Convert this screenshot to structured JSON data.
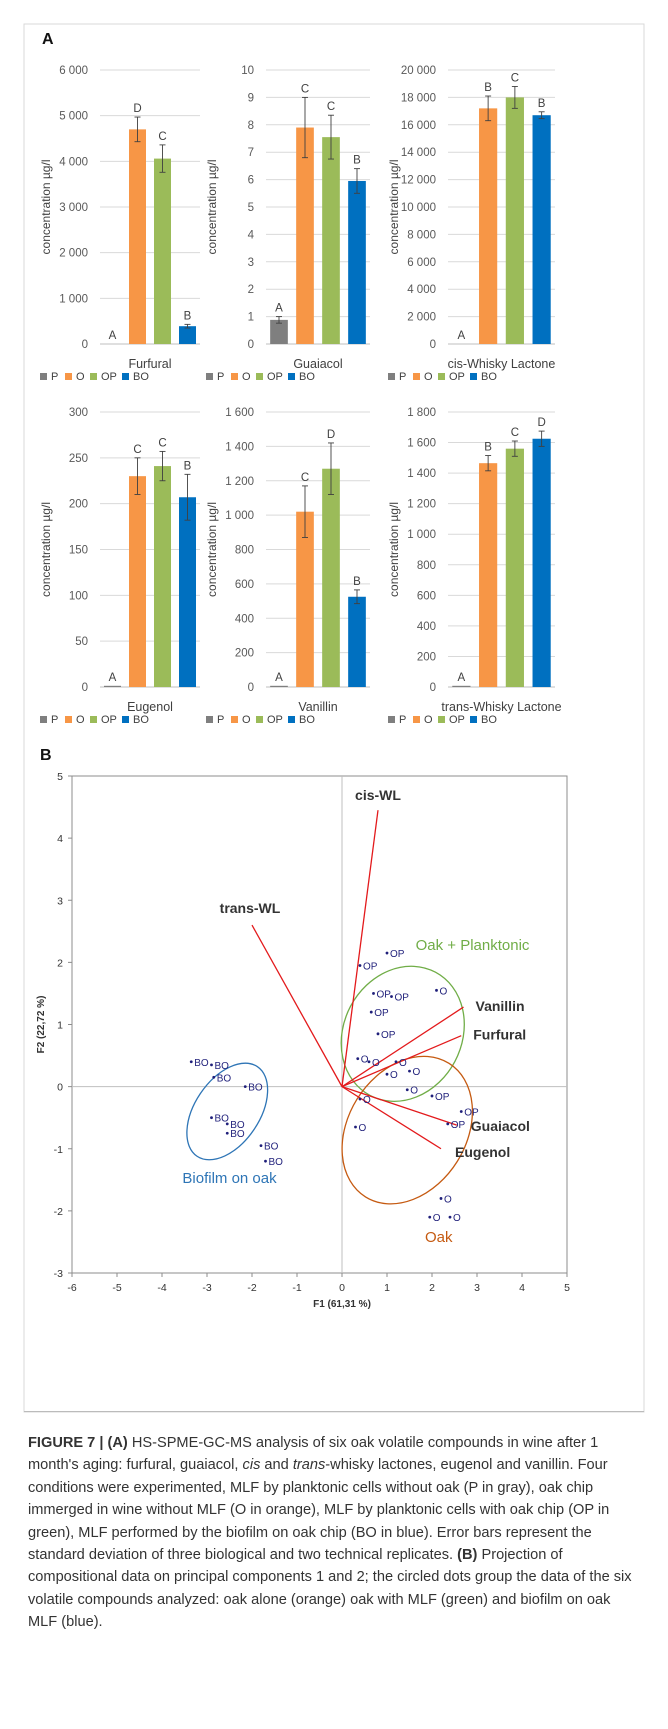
{
  "panel_labels": {
    "a": "A",
    "b": "B"
  },
  "colors": {
    "P": "#7f7f7f",
    "O": "#f79646",
    "OP": "#9bbb59",
    "BO": "#0070c0",
    "oak_ellipse": "#c55a11",
    "op_ellipse": "#70ad47",
    "bo_ellipse": "#2e75b6",
    "vector": "#e31a1c",
    "points": "#1f1f7a"
  },
  "legend": [
    "P",
    "O",
    "OP",
    "BO"
  ],
  "chart_data": [
    {
      "type": "bar",
      "xlabel": "Furfural",
      "ylabel": "concentration µg/l",
      "ylim": [
        0,
        6000
      ],
      "ytick_labels": [
        "0",
        "1 000",
        "2 000",
        "3 000",
        "4 000",
        "5 000",
        "6 000"
      ],
      "categories": [
        "P",
        "O",
        "OP",
        "BO"
      ],
      "values": [
        0,
        4700,
        4060,
        390
      ],
      "errors": [
        0,
        270,
        300,
        40
      ],
      "letters": [
        "A",
        "D",
        "C",
        "B"
      ]
    },
    {
      "type": "bar",
      "xlabel": "Guaiacol",
      "ylabel": "concentration µg/l",
      "ylim": [
        0,
        10
      ],
      "ytick_labels": [
        "0",
        "1",
        "2",
        "3",
        "4",
        "5",
        "6",
        "7",
        "8",
        "9",
        "10"
      ],
      "categories": [
        "P",
        "O",
        "OP",
        "BO"
      ],
      "values": [
        0.88,
        7.9,
        7.55,
        5.95
      ],
      "errors": [
        0.12,
        1.1,
        0.8,
        0.45
      ],
      "letters": [
        "A",
        "C",
        "C",
        "B"
      ]
    },
    {
      "type": "bar",
      "xlabel": "cis-Whisky Lactone",
      "ylabel": "concentration µg/l",
      "ylim": [
        0,
        20000
      ],
      "ytick_labels": [
        "0",
        "2 000",
        "4 000",
        "6 000",
        "8 000",
        "10 000",
        "12 000",
        "14 000",
        "16 000",
        "18 000",
        "20 000"
      ],
      "categories": [
        "P",
        "O",
        "OP",
        "BO"
      ],
      "values": [
        0,
        17200,
        18000,
        16700
      ],
      "errors": [
        0,
        900,
        800,
        250
      ],
      "letters": [
        "A",
        "B",
        "C",
        "B"
      ]
    },
    {
      "type": "bar",
      "xlabel": "Eugenol",
      "ylabel": "concentration µg/l",
      "ylim": [
        0,
        300
      ],
      "ytick_labels": [
        "0",
        "50",
        "100",
        "150",
        "200",
        "250",
        "300"
      ],
      "categories": [
        "P",
        "O",
        "OP",
        "BO"
      ],
      "values": [
        1,
        230,
        241,
        207
      ],
      "errors": [
        0,
        20,
        16,
        25
      ],
      "letters": [
        "A",
        "C",
        "C",
        "B"
      ]
    },
    {
      "type": "bar",
      "xlabel": "Vanillin",
      "ylabel": "concentration µg/l",
      "ylim": [
        0,
        1600
      ],
      "ytick_labels": [
        "0",
        "200",
        "400",
        "600",
        "800",
        "1 000",
        "1 200",
        "1 400",
        "1 600"
      ],
      "categories": [
        "P",
        "O",
        "OP",
        "BO"
      ],
      "values": [
        3,
        1020,
        1270,
        525
      ],
      "errors": [
        0,
        150,
        150,
        40
      ],
      "letters": [
        "A",
        "C",
        "D",
        "B"
      ]
    },
    {
      "type": "bar",
      "xlabel": "trans-Whisky Lactone",
      "ylabel": "concentration µg/l",
      "ylim": [
        0,
        1800
      ],
      "ytick_labels": [
        "0",
        "200",
        "400",
        "600",
        "800",
        "1 000",
        "1 200",
        "1 400",
        "1 600",
        "1 800"
      ],
      "categories": [
        "P",
        "O",
        "OP",
        "BO"
      ],
      "values": [
        3,
        1465,
        1560,
        1625
      ],
      "errors": [
        0,
        50,
        50,
        50
      ],
      "letters": [
        "A",
        "B",
        "C",
        "D"
      ]
    },
    {
      "type": "scatter",
      "xlabel": "F1 (61,31 %)",
      "ylabel": "F2 (22,72 %)",
      "xlim": [
        -6,
        5
      ],
      "ylim": [
        -3,
        5
      ],
      "xticks": [
        -6,
        -5,
        -4,
        -3,
        -2,
        -1,
        0,
        1,
        2,
        3,
        4,
        5
      ],
      "yticks": [
        -3,
        -2,
        -1,
        0,
        1,
        2,
        3,
        4,
        5
      ],
      "vectors": [
        {
          "label": "cis-WL",
          "x": 0.8,
          "y": 4.45
        },
        {
          "label": "trans-WL",
          "x": -2.0,
          "y": 2.6
        },
        {
          "label": "Vanillin",
          "x": 2.7,
          "y": 1.28
        },
        {
          "label": "Furfural",
          "x": 2.65,
          "y": 0.82
        },
        {
          "label": "Guaiacol",
          "x": 2.55,
          "y": -0.62
        },
        {
          "label": "Eugenol",
          "x": 2.2,
          "y": -1.0
        }
      ],
      "points": [
        {
          "label": "BO",
          "x": -3.35,
          "y": 0.4
        },
        {
          "label": "BO",
          "x": -2.9,
          "y": 0.35
        },
        {
          "label": "BO",
          "x": -2.85,
          "y": 0.15
        },
        {
          "label": "BO",
          "x": -2.15,
          "y": 0.0
        },
        {
          "label": "BO",
          "x": -2.9,
          "y": -0.5
        },
        {
          "label": "BO",
          "x": -2.55,
          "y": -0.6
        },
        {
          "label": "BO",
          "x": -2.55,
          "y": -0.75
        },
        {
          "label": "BO",
          "x": -1.8,
          "y": -0.95
        },
        {
          "label": "BO",
          "x": -1.7,
          "y": -1.2
        },
        {
          "label": "OP",
          "x": 0.4,
          "y": 1.95
        },
        {
          "label": "OP",
          "x": 1.0,
          "y": 2.15
        },
        {
          "label": "OP",
          "x": 0.7,
          "y": 1.5
        },
        {
          "label": "OP",
          "x": 1.1,
          "y": 1.45
        },
        {
          "label": "OP",
          "x": 0.65,
          "y": 1.2
        },
        {
          "label": "OP",
          "x": 0.8,
          "y": 0.85
        },
        {
          "label": "OP",
          "x": 2.0,
          "y": -0.15
        },
        {
          "label": "OP",
          "x": 2.65,
          "y": -0.4
        },
        {
          "label": "OP",
          "x": 2.35,
          "y": -0.6
        },
        {
          "label": "O",
          "x": 2.1,
          "y": 1.55
        },
        {
          "label": "O",
          "x": 0.35,
          "y": 0.45
        },
        {
          "label": "O",
          "x": 0.6,
          "y": 0.4
        },
        {
          "label": "O",
          "x": 1.2,
          "y": 0.4
        },
        {
          "label": "O",
          "x": 1.0,
          "y": 0.2
        },
        {
          "label": "O",
          "x": 1.5,
          "y": 0.25
        },
        {
          "label": "O",
          "x": 1.45,
          "y": -0.05
        },
        {
          "label": "O",
          "x": 0.4,
          "y": -0.2
        },
        {
          "label": "O",
          "x": 0.3,
          "y": -0.65
        },
        {
          "label": "O",
          "x": 2.2,
          "y": -1.8
        },
        {
          "label": "O",
          "x": 1.95,
          "y": -2.1
        },
        {
          "label": "O",
          "x": 2.4,
          "y": -2.1
        }
      ],
      "ellipses": [
        {
          "label": "Oak + Planktonic",
          "color_key": "op_ellipse"
        },
        {
          "label": "Oak",
          "color_key": "oak_ellipse"
        },
        {
          "label": "Biofilm on oak",
          "color_key": "bo_ellipse"
        }
      ]
    }
  ],
  "caption": {
    "figure_label": "FIGURE 7 |",
    "part_a_label": "(A)",
    "part_a_text_1": " HS-SPME-GC-MS analysis of six oak volatile compounds in wine after 1 month's aging: furfural, guaiacol, ",
    "part_a_italic": "cis",
    "part_a_text_2": " and ",
    "part_a_italic_2": "trans",
    "part_a_text_3": "-whisky lactones, eugenol and vanillin. Four conditions were experimented, MLF by planktonic cells without oak (P in gray), oak chip immerged in wine without MLF (O in orange), MLF by planktonic cells with oak chip (OP in green), MLF performed by the biofilm on oak chip (BO in blue). Error bars represent the standard deviation of three biological and two technical replicates. ",
    "part_b_label": "(B)",
    "part_b_text": " Projection of compositional data on principal components 1 and 2; the circled dots group the data of the six volatile compounds analyzed: oak alone (orange) oak with MLF (green) and biofilm on oak MLF (blue)."
  }
}
